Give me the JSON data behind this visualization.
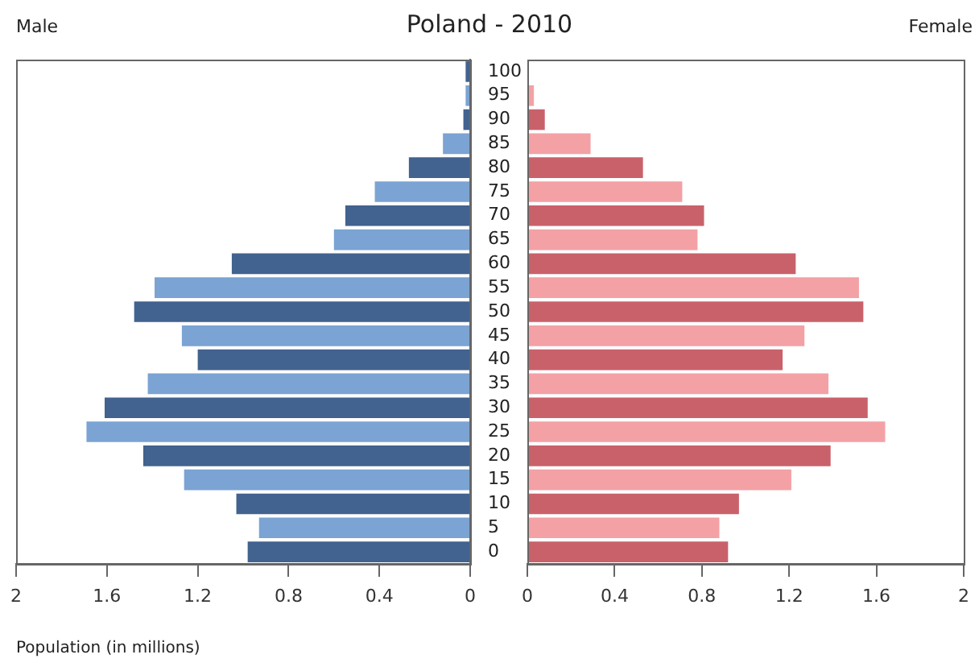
{
  "chart_data": [
    {
      "type": "bar",
      "orientation": "horizontal",
      "title": "Poland - 2010",
      "annotations": [
        "Male"
      ],
      "xlabel": "Population (in millions)",
      "categories": [
        "100",
        "95",
        "90",
        "85",
        "80",
        "75",
        "70",
        "65",
        "60",
        "55",
        "50",
        "45",
        "40",
        "35",
        "30",
        "25",
        "20",
        "15",
        "10",
        "5",
        "0"
      ],
      "values": [
        0.02,
        0.02,
        0.03,
        0.12,
        0.27,
        0.42,
        0.55,
        0.6,
        1.05,
        1.39,
        1.48,
        1.27,
        1.2,
        1.42,
        1.61,
        1.69,
        1.44,
        1.26,
        1.03,
        0.93,
        0.98
      ],
      "colors": [
        "#42628f",
        "#7ba3d3",
        "#42628f",
        "#7ba3d3",
        "#42628f",
        "#7ba3d3",
        "#42628f",
        "#7ba3d3",
        "#42628f",
        "#7ba3d3",
        "#42628f",
        "#7ba3d3",
        "#42628f",
        "#7ba3d3",
        "#42628f",
        "#7ba3d3",
        "#42628f",
        "#7ba3d3",
        "#42628f",
        "#7ba3d3",
        "#42628f"
      ],
      "xlim": [
        2,
        0
      ],
      "xticks": [
        2,
        1.6,
        1.2,
        0.8,
        0.4,
        0
      ]
    },
    {
      "type": "bar",
      "orientation": "horizontal",
      "annotations": [
        "Female"
      ],
      "tick_labels": "x",
      "categories": [
        "100",
        "95",
        "90",
        "85",
        "80",
        "75",
        "70",
        "65",
        "60",
        "55",
        "50",
        "45",
        "40",
        "35",
        "30",
        "25",
        "20",
        "15",
        "10",
        "5",
        "0"
      ],
      "values": [
        0,
        0.03,
        0.08,
        0.29,
        0.53,
        0.71,
        0.81,
        0.78,
        1.23,
        1.52,
        1.54,
        1.27,
        1.17,
        1.38,
        1.56,
        1.64,
        1.39,
        1.21,
        0.97,
        0.88,
        0.92
      ],
      "colors": [
        "#c9616b",
        "#f3a1a5",
        "#c9616b",
        "#f3a1a5",
        "#c9616b",
        "#f3a1a5",
        "#c9616b",
        "#f3a1a5",
        "#c9616b",
        "#f3a1a5",
        "#c9616b",
        "#f3a1a5",
        "#c9616b",
        "#f3a1a5",
        "#c9616b",
        "#f3a1a5",
        "#c9616b",
        "#f3a1a5",
        "#c9616b",
        "#f3a1a5",
        "#c9616b"
      ],
      "xlim": [
        0,
        2
      ],
      "xticks": [
        0,
        0.4,
        0.8,
        1.2,
        1.6,
        2
      ]
    }
  ]
}
